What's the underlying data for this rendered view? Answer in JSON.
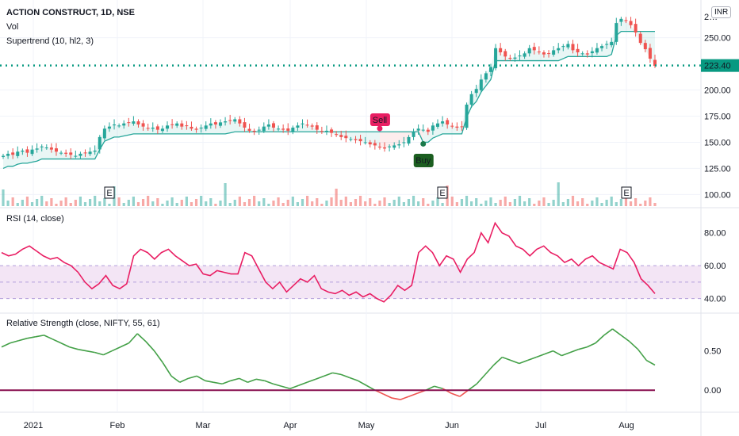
{
  "header": {
    "title": "ACTION CONSTRUCT, 1D, NSE",
    "vol_label": "Vol",
    "supertrend_label": "Supertrend (10, hl2, 3)",
    "currency_badge": "INR"
  },
  "rsi_panel": {
    "label": "RSI (14, close)"
  },
  "rs_panel": {
    "label": "Relative Strength (close, NIFTY, 55, 61)"
  },
  "colors": {
    "up": "#26a69a",
    "down": "#ef5350",
    "supertrend_up": "#26a69a",
    "supertrend_down": "#ef5350",
    "rsi": "#e91e63",
    "rsi_band": "#f3e5f5",
    "rs_pos": "#43a047",
    "rs_neg": "#ef5350",
    "zero_line": "#880e4f",
    "price_line": "#089981"
  },
  "chart_data": [
    {
      "type": "candlestick",
      "title": "ACTION CONSTRUCT, 1D, NSE",
      "x_ticks": [
        "2021",
        "Feb",
        "Mar",
        "Apr",
        "May",
        "Jun",
        "Jul",
        "Aug"
      ],
      "y_ticks": [
        "100.00",
        "125.00",
        "150.00",
        "175.00",
        "200.00",
        "250.00",
        "2…"
      ],
      "ylim": [
        95,
        280
      ],
      "last_price": "223.40",
      "close": [
        137,
        139,
        138,
        141,
        142,
        140,
        143,
        144,
        146,
        145,
        143,
        141,
        140,
        139,
        138,
        137,
        139,
        140,
        141,
        142,
        155,
        163,
        165,
        167,
        166,
        168,
        169,
        170,
        167,
        165,
        163,
        164,
        162,
        163,
        166,
        167,
        168,
        165,
        166,
        163,
        162,
        164,
        166,
        168,
        167,
        169,
        170,
        171,
        172,
        168,
        164,
        161,
        160,
        162,
        165,
        167,
        164,
        163,
        162,
        161,
        164,
        166,
        168,
        166,
        165,
        162,
        160,
        161,
        159,
        157,
        155,
        154,
        153,
        152,
        151,
        150,
        148,
        147,
        145,
        144,
        146,
        147,
        148,
        150,
        155,
        160,
        163,
        162,
        160,
        166,
        168,
        170,
        167,
        165,
        164,
        165,
        186,
        196,
        201,
        210,
        216,
        222,
        240,
        236,
        232,
        230,
        231,
        233,
        235,
        240,
        238,
        236,
        234,
        235,
        238,
        240,
        242,
        244,
        238,
        236,
        235,
        234,
        237,
        240,
        242,
        244,
        246,
        264,
        268,
        266,
        262,
        255,
        245,
        239,
        230,
        223
      ],
      "earnings_markers": [
        "E",
        "E",
        "E"
      ],
      "signals": [
        "Sell",
        "Buy"
      ]
    },
    {
      "type": "line",
      "title": "RSI (14, close)",
      "y_ticks": [
        "40.00",
        "60.00",
        "80.00"
      ],
      "band": [
        40,
        60
      ],
      "values": [
        68,
        66,
        67,
        70,
        72,
        69,
        66,
        64,
        65,
        62,
        60,
        56,
        50,
        46,
        49,
        54,
        48,
        46,
        49,
        66,
        70,
        68,
        64,
        68,
        70,
        66,
        63,
        60,
        61,
        55,
        54,
        57,
        56,
        55,
        55,
        68,
        66,
        58,
        50,
        46,
        50,
        44,
        48,
        52,
        50,
        54,
        46,
        44,
        43,
        45,
        42,
        44,
        41,
        43,
        40,
        38,
        42,
        48,
        45,
        48,
        68,
        72,
        68,
        60,
        66,
        64,
        56,
        64,
        68,
        80,
        74,
        86,
        80,
        78,
        72,
        70,
        66,
        70,
        72,
        68,
        66,
        62,
        64,
        60,
        64,
        66,
        62,
        60,
        58,
        70,
        68,
        62,
        52,
        48,
        43
      ]
    },
    {
      "type": "line",
      "title": "Relative Strength (close, NIFTY, 55, 61)",
      "y_ticks": [
        "0.00",
        "0.50"
      ],
      "values": [
        0.55,
        0.6,
        0.63,
        0.66,
        0.68,
        0.7,
        0.65,
        0.6,
        0.55,
        0.52,
        0.5,
        0.48,
        0.45,
        0.5,
        0.55,
        0.6,
        0.72,
        0.62,
        0.5,
        0.35,
        0.18,
        0.1,
        0.15,
        0.18,
        0.12,
        0.1,
        0.08,
        0.12,
        0.15,
        0.1,
        0.14,
        0.12,
        0.08,
        0.05,
        0.02,
        0.06,
        0.1,
        0.14,
        0.18,
        0.22,
        0.2,
        0.16,
        0.12,
        0.06,
        0.0,
        -0.05,
        -0.1,
        -0.12,
        -0.08,
        -0.04,
        0.0,
        0.05,
        0.02,
        -0.04,
        -0.08,
        0.0,
        0.08,
        0.2,
        0.32,
        0.42,
        0.38,
        0.34,
        0.38,
        0.42,
        0.46,
        0.5,
        0.44,
        0.48,
        0.52,
        0.55,
        0.6,
        0.7,
        0.78,
        0.7,
        0.62,
        0.52,
        0.38,
        0.32
      ]
    }
  ]
}
